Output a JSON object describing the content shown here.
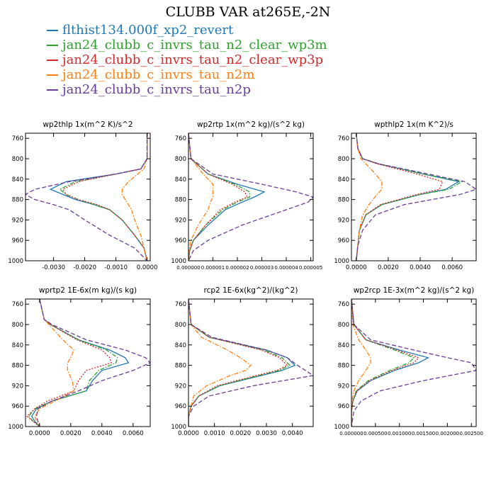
{
  "title": "CLUBB VAR at265E,-2N",
  "legend": [
    {
      "name": "flthist134.000f_xp2_revert",
      "color": "#1f77b4",
      "dash": "solid"
    },
    {
      "name": "jan24_clubb_c_invrs_tau_n2_clear_wp3m",
      "color": "#2ca02c",
      "dash": "dashdot"
    },
    {
      "name": "jan24_clubb_c_invrs_tau_n2_clear_wp3p",
      "color": "#d62728",
      "dash": "dot"
    },
    {
      "name": "jan24_clubb_c_invrs_tau_n2m",
      "color": "#ff7f0e",
      "dash": "dashdot"
    },
    {
      "name": "jan24_clubb_c_invrs_tau_n2p",
      "color": "#6a3d9a",
      "dash": "dash"
    }
  ],
  "chart_data": [
    {
      "type": "line",
      "title": "wp2thlp  1x(m^2 K)/s^2",
      "ylim": [
        1000,
        750
      ],
      "yticks": [
        760,
        800,
        840,
        880,
        920,
        960,
        1000
      ],
      "xlim": [
        -0.0039,
        0.0001
      ],
      "xticks": [
        -0.003,
        -0.002,
        -0.001,
        0.0
      ],
      "xticklabels": [
        "-0.0030",
        "-0.0020",
        "-0.0010",
        "0.0000"
      ],
      "y": [
        750,
        800,
        820,
        830,
        845,
        860,
        870,
        880,
        890,
        900,
        920,
        950,
        975,
        1000
      ],
      "series": [
        {
          "values": [
            0.0,
            0.0,
            -0.0002,
            -0.001,
            -0.0026,
            -0.0031,
            -0.0027,
            -0.0023,
            -0.0017,
            -0.0012,
            -0.0008,
            -0.0004,
            -0.0001,
            0.0
          ]
        },
        {
          "values": [
            0.0,
            0.0,
            -0.0002,
            -0.001,
            -0.0023,
            -0.0028,
            -0.0026,
            -0.0022,
            -0.0017,
            -0.0012,
            -0.0008,
            -0.0004,
            -0.0001,
            0.0
          ]
        },
        {
          "values": [
            0.0,
            0.0,
            -0.0002,
            -0.001,
            -0.0022,
            -0.0027,
            -0.0026,
            -0.0022,
            -0.0016,
            -0.0012,
            -0.0008,
            -0.0004,
            -0.0001,
            0.0
          ]
        },
        {
          "values": [
            0.0,
            0.0,
            -0.0001,
            -0.0003,
            -0.0006,
            -0.0008,
            -0.0008,
            -0.0007,
            -0.0006,
            -0.0005,
            -0.0004,
            -0.0002,
            -0.0001,
            0.0
          ]
        },
        {
          "values": [
            0.0,
            0.0,
            -0.0002,
            -0.001,
            -0.0025,
            -0.0036,
            -0.0039,
            -0.0036,
            -0.003,
            -0.0025,
            -0.002,
            -0.0012,
            -0.0004,
            0.0
          ]
        }
      ]
    },
    {
      "type": "line",
      "title": "wp2rtp  1x(m^2 kg)/(s^2 kg)",
      "ylim": [
        1000,
        750
      ],
      "yticks": [
        760,
        800,
        840,
        880,
        920,
        960,
        1000
      ],
      "xlim": [
        0.0,
        5.1e-06
      ],
      "xticks": [
        0.0,
        1e-06,
        2e-06,
        3e-06,
        4e-06,
        5e-06
      ],
      "xticklabels": [
        "0.000000",
        "0.000001",
        "0.000002",
        "0.000003",
        "0.000004",
        "0.000005"
      ],
      "y": [
        750,
        800,
        830,
        850,
        865,
        875,
        885,
        900,
        930,
        960,
        980,
        1000
      ],
      "series": [
        {
          "values": [
            0.0,
            1e-07,
            8e-07,
            2e-06,
            3.1e-06,
            2.7e-06,
            2.2e-06,
            1.5e-06,
            8e-07,
            2e-07,
            5e-08,
            0.0
          ]
        },
        {
          "values": [
            0.0,
            1e-07,
            8e-07,
            1.9e-06,
            2.5e-06,
            2.5e-06,
            2e-06,
            1.4e-06,
            7e-07,
            2e-07,
            5e-08,
            0.0
          ]
        },
        {
          "values": [
            0.0,
            1e-07,
            8e-07,
            1.8e-06,
            2.3e-06,
            2.4e-06,
            1.9e-06,
            1.3e-06,
            7e-07,
            2e-07,
            5e-08,
            0.0
          ]
        },
        {
          "values": [
            0.0,
            1e-07,
            6e-07,
            1e-06,
            1e-06,
            1e-06,
            9e-07,
            8e-07,
            4e-07,
            1e-07,
            3e-08,
            0.0
          ]
        },
        {
          "values": [
            0.0,
            1e-07,
            1e-06,
            3e-06,
            4.4e-06,
            5.1e-06,
            4.9e-06,
            4e-06,
            2.2e-06,
            8e-07,
            2e-07,
            0.0
          ]
        }
      ]
    },
    {
      "type": "line",
      "title": "wpthlp2  1x(m K^2)/s",
      "ylim": [
        1000,
        750
      ],
      "yticks": [
        760,
        800,
        840,
        880,
        920,
        960,
        1000
      ],
      "xlim": [
        -0.0003,
        0.0075
      ],
      "xticks": [
        0.0,
        0.002,
        0.004,
        0.006
      ],
      "xticklabels": [
        "0.0000",
        "0.0020",
        "0.0040",
        "0.0060"
      ],
      "y": [
        750,
        780,
        800,
        810,
        830,
        845,
        860,
        870,
        890,
        910,
        940,
        970,
        1000
      ],
      "series": [
        {
          "values": [
            0.0,
            0.0001,
            0.0004,
            0.0014,
            0.0042,
            0.0064,
            0.0056,
            0.004,
            0.0016,
            0.0006,
            0.0002,
            0.0001,
            0.0
          ]
        },
        {
          "values": [
            0.0,
            0.0001,
            0.0004,
            0.0014,
            0.0042,
            0.0066,
            0.0058,
            0.004,
            0.0016,
            0.0006,
            0.0002,
            0.0001,
            0.0
          ]
        },
        {
          "values": [
            0.0,
            0.0001,
            0.0004,
            0.0013,
            0.0038,
            0.0054,
            0.0052,
            0.0038,
            0.0015,
            0.0006,
            0.0002,
            0.0001,
            0.0
          ]
        },
        {
          "values": [
            0.0,
            0.0001,
            0.0003,
            0.0006,
            0.0012,
            0.0016,
            0.0016,
            0.0013,
            0.0008,
            0.0004,
            0.0002,
            0.0001,
            0.0
          ]
        },
        {
          "values": [
            0.0,
            0.0001,
            0.0004,
            0.0014,
            0.0045,
            0.0068,
            0.0075,
            0.0065,
            0.003,
            0.0012,
            0.0004,
            0.0001,
            0.0
          ]
        }
      ]
    },
    {
      "type": "line",
      "title": "wprtp2  1E-6x(m kg)/(s kg)",
      "ylim": [
        1000,
        750
      ],
      "yticks": [
        760,
        800,
        840,
        880,
        920,
        960,
        1000
      ],
      "xlim": [
        -0.0009,
        0.0071
      ],
      "xticks": [
        0.0,
        0.002,
        0.004,
        0.006
      ],
      "xticklabels": [
        "0.0000",
        "0.0020",
        "0.0040",
        "0.0060"
      ],
      "y": [
        750,
        790,
        800,
        830,
        850,
        865,
        875,
        890,
        910,
        930,
        950,
        965,
        980,
        990,
        1000
      ],
      "series": [
        {
          "values": [
            0.0,
            0.0003,
            0.0007,
            0.0025,
            0.0045,
            0.0055,
            0.0057,
            0.004,
            0.0034,
            0.003,
            0.0008,
            -0.0002,
            -0.0005,
            -0.0003,
            0.0
          ]
        },
        {
          "values": [
            0.0,
            0.0003,
            0.0007,
            0.0025,
            0.0043,
            0.005,
            0.0049,
            0.0038,
            0.0032,
            0.003,
            0.0008,
            -0.0003,
            -0.0007,
            -0.0004,
            0.0
          ]
        },
        {
          "values": [
            0.0,
            0.0003,
            0.0007,
            0.0024,
            0.004,
            0.0045,
            0.0046,
            0.003,
            0.0025,
            0.0022,
            0.0005,
            -0.0003,
            -0.0008,
            -0.0004,
            0.0
          ]
        },
        {
          "values": [
            0.0,
            0.0003,
            0.0006,
            0.0015,
            0.0022,
            0.002,
            0.0018,
            0.0018,
            0.0021,
            0.0022,
            0.001,
            0.0,
            -0.0003,
            -0.0002,
            0.0
          ]
        },
        {
          "values": [
            0.0,
            0.0003,
            0.0008,
            0.003,
            0.0055,
            0.0068,
            0.0071,
            0.006,
            0.004,
            0.0025,
            0.0008,
            -0.0001,
            -0.0002,
            -0.0001,
            0.0
          ]
        }
      ]
    },
    {
      "type": "line",
      "title": "rcp2  1E-6x(kg^2)/(kg^2)",
      "ylim": [
        1000,
        750
      ],
      "yticks": [
        760,
        800,
        840,
        880,
        920,
        960,
        1000
      ],
      "xlim": [
        0.0,
        0.0048
      ],
      "xticks": [
        0.0,
        0.001,
        0.002,
        0.003,
        0.004
      ],
      "xticklabels": [
        "0.0000",
        "0.0010",
        "0.0020",
        "0.0030",
        "0.0040"
      ],
      "y": [
        750,
        800,
        825,
        850,
        865,
        880,
        890,
        900,
        920,
        940,
        960,
        980,
        1000
      ],
      "series": [
        {
          "values": [
            0.0,
            0.0001,
            0.0008,
            0.003,
            0.0038,
            0.0041,
            0.0036,
            0.0028,
            0.0012,
            0.0004,
            0.0001,
            0.0,
            0.0
          ]
        },
        {
          "values": [
            0.0,
            0.0001,
            0.0008,
            0.0029,
            0.0036,
            0.0039,
            0.0035,
            0.0027,
            0.0012,
            0.0004,
            0.0001,
            0.0,
            0.0
          ]
        },
        {
          "values": [
            0.0,
            0.0001,
            0.0008,
            0.0028,
            0.0035,
            0.0038,
            0.0034,
            0.0026,
            0.0011,
            0.0004,
            0.0001,
            0.0,
            0.0
          ]
        },
        {
          "values": [
            0.0,
            0.0001,
            0.0005,
            0.0015,
            0.002,
            0.0024,
            0.0022,
            0.0016,
            0.0007,
            0.0002,
            0.0001,
            0.0,
            0.0
          ]
        },
        {
          "values": [
            0.0,
            0.0001,
            0.0009,
            0.003,
            0.0038,
            0.0042,
            0.0045,
            0.0048,
            0.0025,
            0.0008,
            0.0002,
            0.0,
            0.0
          ]
        }
      ]
    },
    {
      "type": "line",
      "title": "wp2rcp  1E-3x(m^2 kg)/(s^2 kg)",
      "ylim": [
        1000,
        750
      ],
      "yticks": [
        760,
        800,
        840,
        880,
        920,
        960,
        1000
      ],
      "xlim": [
        0.0,
        0.0026
      ],
      "xticks": [
        0.0,
        0.0005,
        0.001,
        0.0015,
        0.002,
        0.0025
      ],
      "xticklabels": [
        "0.000000",
        "0.000500",
        "0.001000",
        "0.001500",
        "0.002000",
        "0.002500"
      ],
      "y": [
        750,
        800,
        830,
        850,
        865,
        875,
        890,
        910,
        930,
        950,
        970,
        1000
      ],
      "series": [
        {
          "values": [
            0.0,
            5e-05,
            0.0003,
            0.001,
            0.0016,
            0.0014,
            0.0009,
            0.0004,
            0.00012,
            3e-05,
            0.0,
            0.0
          ]
        },
        {
          "values": [
            0.0,
            5e-05,
            0.0003,
            0.0009,
            0.0013,
            0.0012,
            0.0008,
            0.00035,
            0.0001,
            3e-05,
            0.0,
            0.0
          ]
        },
        {
          "values": [
            0.0,
            5e-05,
            0.0003,
            0.00095,
            0.0014,
            0.0013,
            0.00085,
            0.00038,
            0.00011,
            3e-05,
            0.0,
            0.0
          ]
        },
        {
          "values": [
            0.0,
            3e-05,
            0.00015,
            0.0003,
            0.0004,
            0.0004,
            0.0003,
            0.00015,
            5e-05,
            1e-05,
            0.0,
            0.0
          ]
        },
        {
          "values": [
            0.0,
            5e-05,
            0.0004,
            0.0013,
            0.002,
            0.0025,
            0.0026,
            0.0015,
            0.0006,
            0.0002,
            5e-05,
            0.0
          ]
        }
      ]
    }
  ]
}
